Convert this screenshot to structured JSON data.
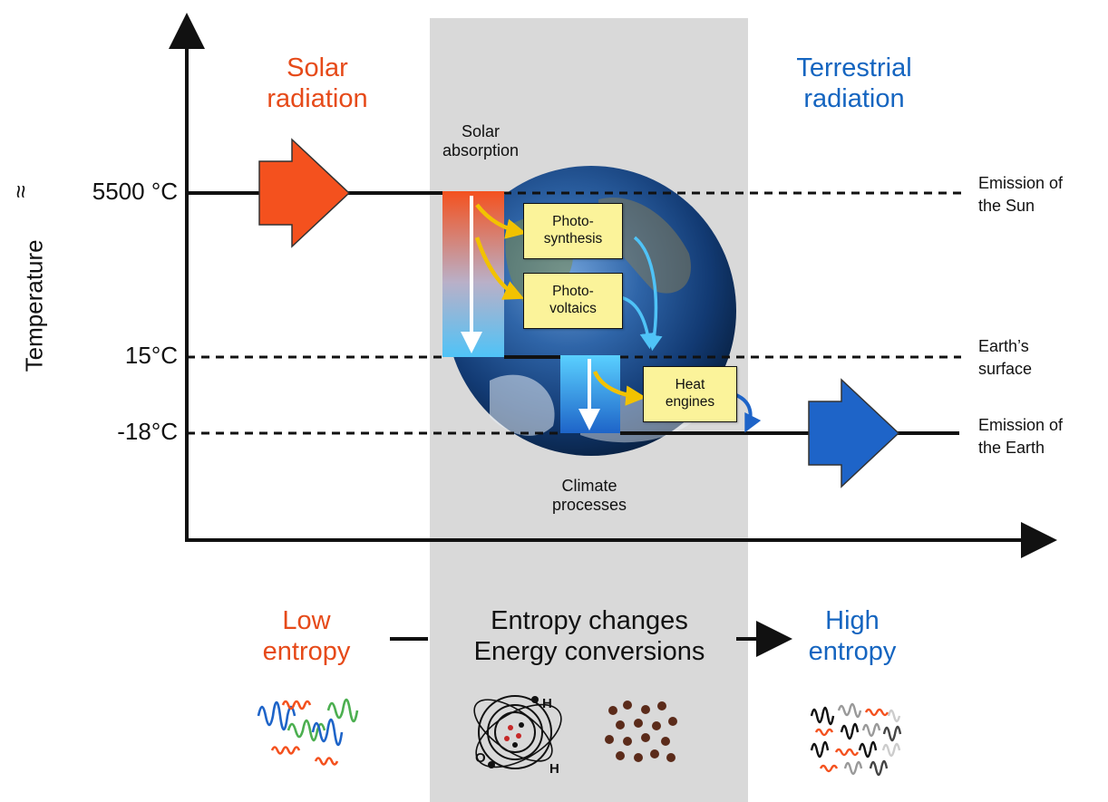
{
  "axis": {
    "ylabel": "Temperature",
    "ticks": [
      {
        "approx": "≈",
        "label": "5500 °C"
      },
      {
        "approx": "",
        "label": "15°C"
      },
      {
        "approx": "",
        "label": "-18°C"
      }
    ]
  },
  "top_labels": {
    "solar": "Solar\nradiation",
    "terrestrial": "Terrestrial\nradiation",
    "solar_absorption": "Solar\nabsorption",
    "climate_processes": "Climate\nprocesses"
  },
  "right_labels": {
    "sun": "Emission of\nthe Sun",
    "surface": "Earth’s\nsurface",
    "earth": "Emission of\nthe Earth"
  },
  "boxes": {
    "photosynthesis": "Photo-\nsynthesis",
    "photovoltaics": "Photo-\nvoltaics",
    "heat_engines": "Heat\nengines"
  },
  "bottom": {
    "low": "Low\nentropy",
    "center": "Entropy changes\nEnergy conversions",
    "high": "High\nentropy"
  },
  "molecule": {
    "h1": "H",
    "h2": "H",
    "o": "O"
  },
  "colors": {
    "solar": "#f4511e",
    "terrestrial": "#1e64c8",
    "box_fill": "#fbf39a",
    "band": "#d9d9d9",
    "yellow_arrow": "#f2c200",
    "cyan_arrow": "#4fc3f7"
  }
}
